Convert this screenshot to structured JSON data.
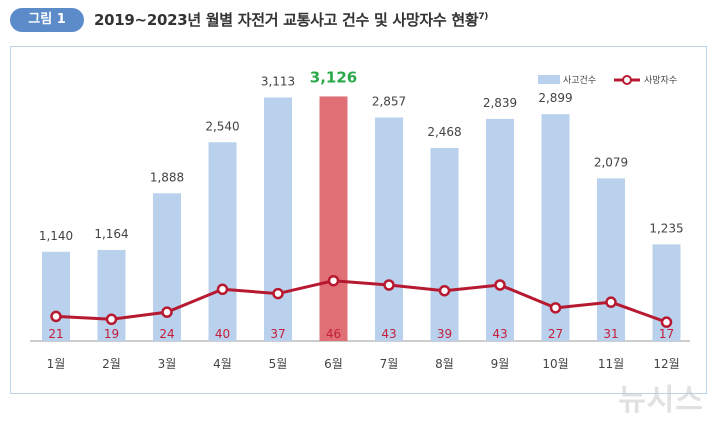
{
  "header": {
    "badge": "그림 1",
    "title": "2019~2023년 월별 자전거 교통사고 건수 및 사망자수 현황",
    "footnote_mark": "7)"
  },
  "watermark": "뉴시스",
  "colors": {
    "bar": "#b9d1ec",
    "bar_highlight": "#e07075",
    "line": "#b71a30",
    "peak_label": "#2aa84a"
  },
  "chart_data": {
    "type": "bar",
    "categories": [
      "1월",
      "2월",
      "3월",
      "4월",
      "5월",
      "6월",
      "7월",
      "8월",
      "9월",
      "10월",
      "11월",
      "12월"
    ],
    "ylim": [
      0,
      3400
    ],
    "highlight_index": 5,
    "legend_position": "top-right",
    "series": [
      {
        "name": "사고건수",
        "type": "bar",
        "values": [
          1140,
          1164,
          1888,
          2540,
          3113,
          3126,
          2857,
          2468,
          2839,
          2899,
          2079,
          1235
        ],
        "labels": [
          "1,140",
          "1,164",
          "1,888",
          "2,540",
          "3,113",
          "3,126",
          "2,857",
          "2,468",
          "2,839",
          "2,899",
          "2,079",
          "1,235"
        ]
      },
      {
        "name": "사망자수",
        "type": "line",
        "values": [
          21,
          19,
          24,
          40,
          37,
          46,
          43,
          39,
          43,
          27,
          31,
          17
        ],
        "labels": [
          "21",
          "19",
          "24",
          "40",
          "37",
          "46",
          "43",
          "39",
          "43",
          "27",
          "31",
          "17"
        ]
      }
    ]
  }
}
